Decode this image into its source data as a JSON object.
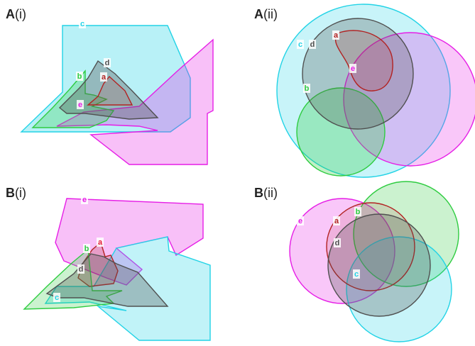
{
  "panels": [
    {
      "id": "Ai",
      "letter": "A",
      "sub": "(i)"
    },
    {
      "id": "Aii",
      "letter": "A",
      "sub": "(ii)"
    },
    {
      "id": "Bi",
      "letter": "B",
      "sub": "(i)"
    },
    {
      "id": "Bii",
      "letter": "B",
      "sub": "(ii)"
    }
  ],
  "sets": {
    "a": {
      "label": "a",
      "color": "#b22222"
    },
    "b": {
      "label": "b",
      "color": "#2ecc40"
    },
    "c": {
      "label": "c",
      "color": "#22d3e6"
    },
    "d": {
      "label": "d",
      "color": "#505050"
    },
    "e": {
      "label": "e",
      "color": "#e61ee6"
    }
  }
}
